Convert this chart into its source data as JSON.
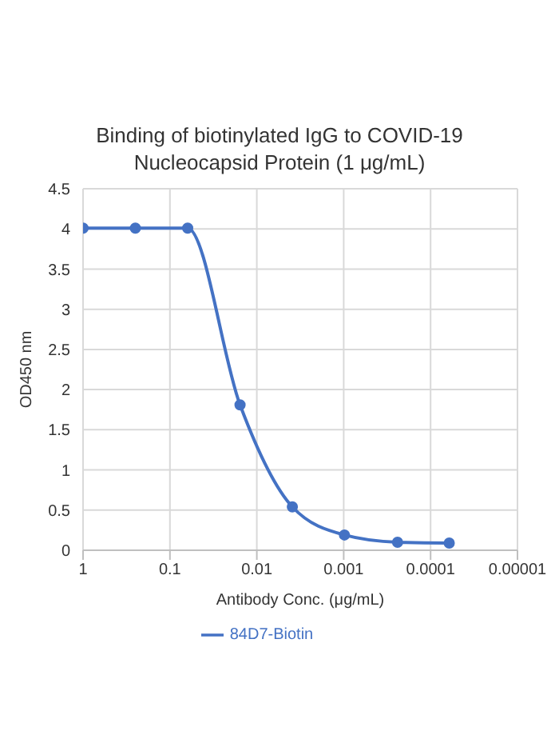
{
  "chart_data": {
    "type": "line",
    "title": "Binding of biotinylated IgG to COVID-19 Nucleocapsid Protein (1 μg/mL)",
    "xlabel": "Antibody Conc. (μg/mL)",
    "ylabel": "OD450 nm",
    "x": [
      1,
      0.25,
      0.0625,
      0.0156,
      0.0039,
      0.00098,
      0.00024,
      6.1e-05
    ],
    "series": [
      {
        "name": "84D7-Biotin",
        "color": "#4472c4",
        "values": [
          4.01,
          4.01,
          4.01,
          1.81,
          0.54,
          0.19,
          0.1,
          0.09
        ]
      }
    ],
    "xlim": [
      1,
      1e-05
    ],
    "xticks": [
      1,
      0.1,
      0.01,
      0.001,
      0.0001,
      {
        "value": 1e-05,
        "label": "0.00001"
      }
    ],
    "ylim": [
      0,
      4.5
    ],
    "yticks": [
      0,
      0.5,
      1,
      1.5,
      2,
      2.5,
      3,
      3.5,
      4,
      4.5
    ],
    "log": "x",
    "grid": true,
    "legend": "bottom",
    "marker": "circle",
    "line_style": "solid"
  }
}
